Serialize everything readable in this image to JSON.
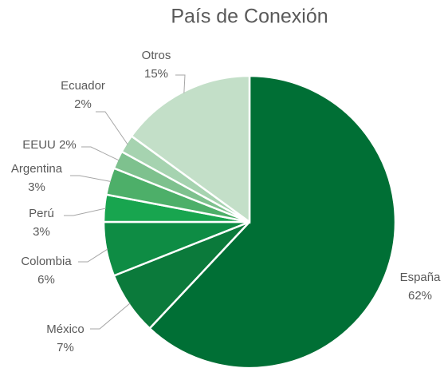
{
  "chart_data": {
    "type": "pie",
    "title": "País de Conexión",
    "categories": [
      "España",
      "México",
      "Colombia",
      "Perú",
      "Argentina",
      "EEUU",
      "Ecuador",
      "Otros"
    ],
    "values": [
      62,
      7,
      6,
      3,
      3,
      2,
      2,
      15
    ],
    "value_labels": [
      "62%",
      "7%",
      "6%",
      "3%",
      "3%",
      "2%",
      "2%",
      "15%"
    ],
    "colors": [
      "#006f35",
      "#0b7a3b",
      "#0e8c44",
      "#18a54f",
      "#4daf69",
      "#7ec18e",
      "#a6d3b0",
      "#c3dfc8"
    ]
  }
}
